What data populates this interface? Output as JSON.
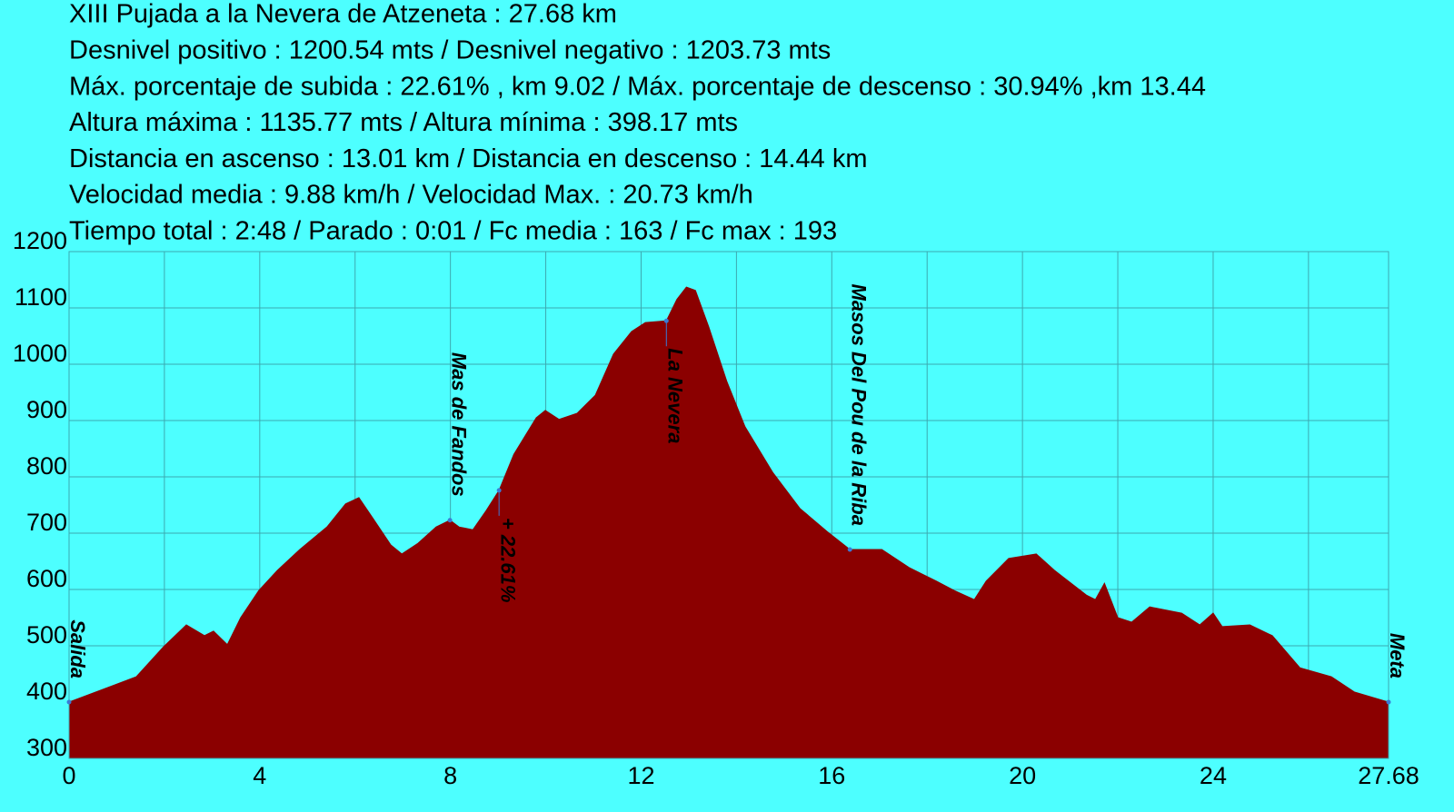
{
  "chart_data": {
    "type": "area",
    "title_lines": [
      "XIII Pujada a la Nevera de Atzeneta  : 27.68 km",
      "Desnivel positivo : 1200.54 mts /  Desnivel negativo : 1203.73 mts",
      "Máx. porcentaje de subida : 22.61% , km 9.02 / Máx. porcentaje de descenso : 30.94% ,km 13.44",
      "Altura máxima : 1135.77 mts / Altura mínima : 398.17 mts",
      "Distancia en ascenso : 13.01 km  / Distancia en descenso : 14.44 km",
      "Velocidad media  :  9.88 km/h / Velocidad Max.  :  20.73 km/h",
      "Tiempo total : 2:48  / Parado : 0:01  /  Fc media : 163  / Fc max : 193"
    ],
    "x": [
      0,
      1.41,
      1.98,
      2.46,
      2.84,
      3.03,
      3.32,
      3.6,
      3.98,
      4.37,
      4.84,
      5.41,
      5.8,
      6.08,
      6.37,
      6.75,
      6.98,
      7.32,
      7.7,
      7.99,
      8.18,
      8.47,
      8.75,
      9.02,
      9.33,
      9.8,
      9.99,
      10.28,
      10.66,
      11.04,
      11.42,
      11.8,
      12.09,
      12.53,
      12.75,
      12.95,
      13.14,
      13.42,
      13.8,
      14.18,
      14.76,
      15.33,
      15.9,
      16.38,
      17.05,
      17.62,
      18.19,
      18.57,
      18.99,
      19.24,
      19.71,
      20.29,
      20.67,
      21.34,
      21.53,
      21.72,
      22.0,
      22.29,
      22.67,
      23.34,
      23.72,
      24.0,
      24.19,
      24.77,
      25.24,
      25.82,
      26.48,
      26.96,
      27.68
    ],
    "values": [
      400,
      445,
      498,
      537,
      518,
      526,
      502,
      550,
      598,
      634,
      671,
      711,
      752,
      763,
      727,
      679,
      663,
      682,
      711,
      723,
      711,
      706,
      740,
      776,
      840,
      905,
      918,
      902,
      913,
      945,
      1018,
      1058,
      1074,
      1077,
      1115,
      1137,
      1131,
      1066,
      969,
      889,
      808,
      744,
      703,
      671,
      671,
      639,
      615,
      598,
      582,
      615,
      655,
      663,
      634,
      590,
      582,
      611,
      550,
      542,
      569,
      558,
      537,
      558,
      534,
      537,
      518,
      461,
      445,
      418,
      400
    ],
    "color": "#8b0000",
    "xlim": [
      0,
      27.68
    ],
    "xticks": [
      0,
      4,
      8,
      12,
      16,
      20,
      24,
      27.68
    ],
    "xminorticks": [
      2,
      6,
      10,
      14,
      18,
      22,
      26
    ],
    "ylim": [
      300,
      1200
    ],
    "yticks": [
      300,
      400,
      500,
      600,
      700,
      800,
      900,
      1000,
      1100,
      1200
    ],
    "grid": true,
    "annotations": [
      {
        "text": "Salida",
        "x": 0,
        "y": 400,
        "position": "above"
      },
      {
        "text": "Mas de Fandos",
        "x": 7.99,
        "y": 723,
        "position": "above"
      },
      {
        "text": "+ 22.61%",
        "x": 9.02,
        "y": 776,
        "position": "below"
      },
      {
        "text": "La Nevera",
        "x": 12.53,
        "y": 1077,
        "position": "below"
      },
      {
        "text": "Masos Del Pou de la Riba",
        "x": 16.38,
        "y": 671,
        "position": "above"
      },
      {
        "text": "Meta",
        "x": 27.68,
        "y": 400,
        "position": "above"
      }
    ]
  }
}
